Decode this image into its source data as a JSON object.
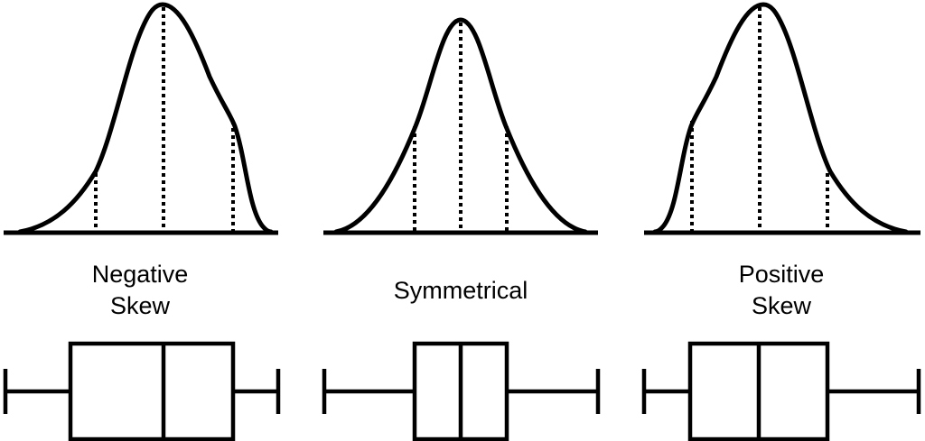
{
  "panels": [
    {
      "id": "negative",
      "label_lines": [
        "Negative",
        "Skew"
      ],
      "box": {
        "min": 0,
        "q1": 0.235,
        "median": 0.57,
        "q3": 0.8,
        "max": 1.0
      }
    },
    {
      "id": "symmetrical",
      "label_lines": [
        "Symmetrical"
      ],
      "box": {
        "min": 0,
        "q1": 0.33,
        "median": 0.5,
        "q3": 0.67,
        "max": 1.0
      }
    },
    {
      "id": "positive",
      "label_lines": [
        "Positive",
        "Skew"
      ],
      "box": {
        "min": 0,
        "q1": 0.2,
        "median": 0.43,
        "q3": 0.765,
        "max": 1.0
      }
    }
  ],
  "colors": {
    "stroke": "#000000",
    "background": "#ffffff"
  }
}
